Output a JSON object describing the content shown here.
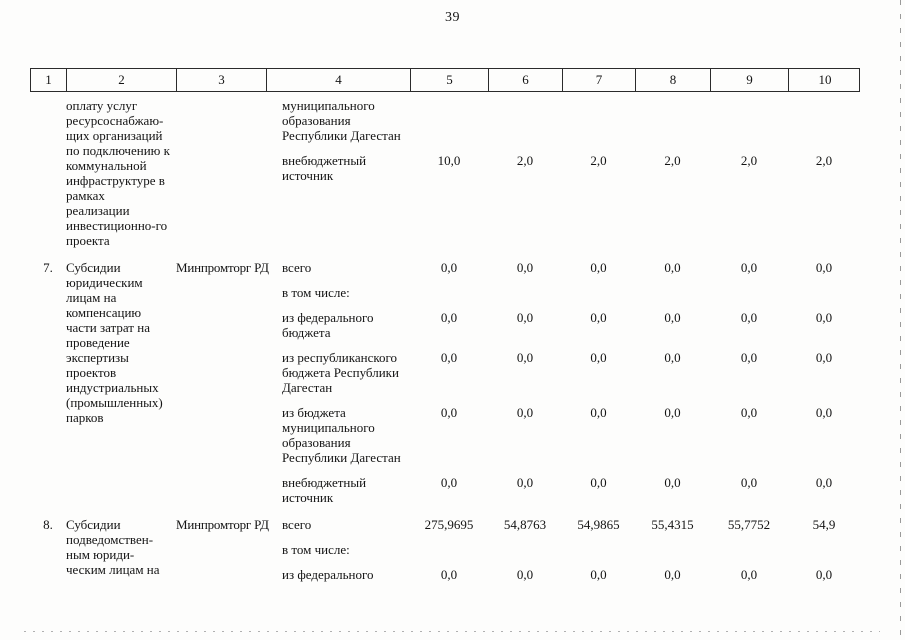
{
  "page": {
    "number": "39"
  },
  "table": {
    "headers": [
      "1",
      "2",
      "3",
      "4",
      "5",
      "6",
      "7",
      "8",
      "9",
      "10"
    ],
    "rows": [
      {
        "num": "",
        "description": "оплату услуг ресурсоснабжаю-щих организаций по подключению к коммунальной инфраструктуре в рамках реализации инвестиционно-го проекта",
        "executor": "",
        "subrows": [
          {
            "source": "муниципального образования Республики Дагестан",
            "values": [
              "",
              "",
              "",
              "",
              "",
              ""
            ]
          },
          {
            "source": "внебюджетный источник",
            "values": [
              "10,0",
              "2,0",
              "2,0",
              "2,0",
              "2,0",
              "2,0"
            ]
          }
        ]
      },
      {
        "num": "7.",
        "description": "Субсидии юридическим лицам на компенсацию части затрат на проведение экспертизы проектов индустриальных (промышленных) парков",
        "executor": "Минпромторг РД",
        "subrows": [
          {
            "source": "всего",
            "values": [
              "0,0",
              "0,0",
              "0,0",
              "0,0",
              "0,0",
              "0,0"
            ]
          },
          {
            "source": "в том числе:",
            "values": [
              "",
              "",
              "",
              "",
              "",
              ""
            ]
          },
          {
            "source": "из федерального бюджета",
            "values": [
              "0,0",
              "0,0",
              "0,0",
              "0,0",
              "0,0",
              "0,0"
            ]
          },
          {
            "source": "из республиканского бюджета Республики Дагестан",
            "values": [
              "0,0",
              "0,0",
              "0,0",
              "0,0",
              "0,0",
              "0,0"
            ]
          },
          {
            "source": "из бюджета муниципального образования Республики Дагестан",
            "values": [
              "0,0",
              "0,0",
              "0,0",
              "0,0",
              "0,0",
              "0,0"
            ]
          },
          {
            "source": "внебюджетный источник",
            "values": [
              "0,0",
              "0,0",
              "0,0",
              "0,0",
              "0,0",
              "0,0"
            ]
          }
        ]
      },
      {
        "num": "8.",
        "description": "Субсидии подведомствен-ным юриди-ческим лицам на",
        "executor": "Минпромторг РД",
        "subrows": [
          {
            "source": "всего",
            "values": [
              "275,9695",
              "54,8763",
              "54,9865",
              "55,4315",
              "55,7752",
              "54,9"
            ]
          },
          {
            "source": "в том числе:",
            "values": [
              "",
              "",
              "",
              "",
              "",
              ""
            ]
          },
          {
            "source": "из федерального",
            "values": [
              "0,0",
              "0,0",
              "0,0",
              "0,0",
              "0,0",
              "0,0"
            ]
          }
        ]
      }
    ]
  }
}
